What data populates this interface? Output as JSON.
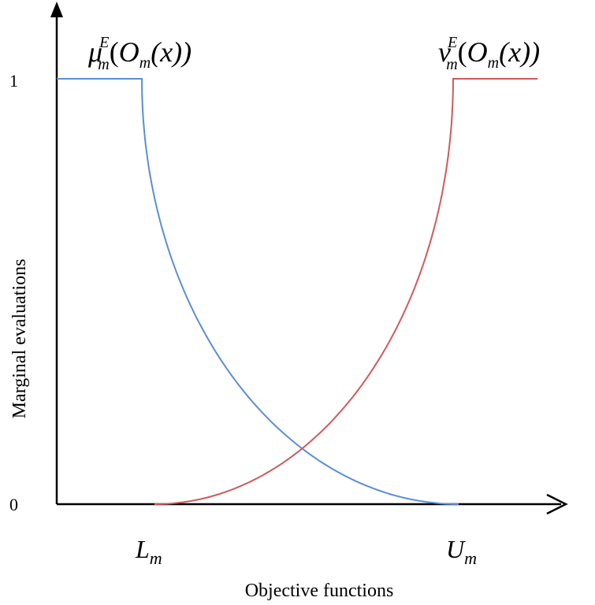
{
  "chart_data": {
    "type": "line",
    "xlabel": "Objective functions",
    "ylabel": "Marginal evaluations",
    "yticks": [
      "0",
      "1"
    ],
    "xmarks": [
      {
        "base": "L",
        "sub": "m"
      },
      {
        "base": "U",
        "sub": "m"
      }
    ],
    "series": [
      {
        "name": "mu",
        "label": {
          "sym": "μ",
          "sub": "m",
          "sup": "E",
          "open": "(",
          "O": "O",
          "osub": "m",
          "rest": "(x))"
        },
        "color": "#5b8ed6"
      },
      {
        "name": "nu",
        "label": {
          "sym": "ν",
          "sub": "m",
          "sup": "E",
          "open": "(",
          "O": "O",
          "osub": "m",
          "rest": "(x))"
        },
        "color": "#d05a5a"
      }
    ],
    "grid": false,
    "legend": "none"
  }
}
